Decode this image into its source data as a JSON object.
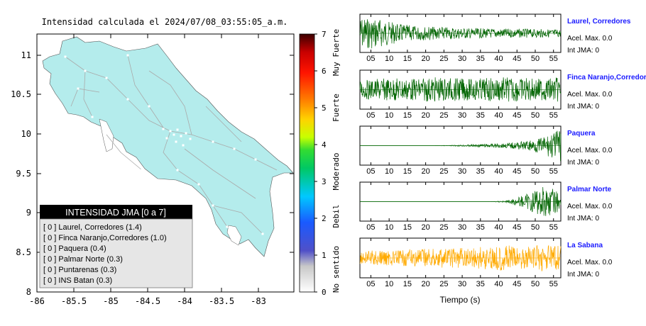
{
  "map": {
    "title": "Intensidad calculada el 2024/07/08_03:55:05_a.m.",
    "x_ticks": [
      "-86",
      "-85.5",
      "-85",
      "-84.5",
      "-84",
      "-83.5",
      "-83"
    ],
    "y_ticks": [
      "11",
      "10.5",
      "10",
      "9.5",
      "9",
      "8.5",
      "8"
    ],
    "land_color": "#b4ecec",
    "legend": {
      "header": "INTENSIDAD JMA [0 a 7]",
      "rows": [
        "[ 0 ] Laurel, Corredores (1.4)",
        "[ 0 ] Finca Naranjo,Corredores (1.0)",
        "[ 0 ] Paquera (0.4)",
        "[ 0 ] Palmar Norte (0.3)",
        "[ 0 ] Puntarenas (0.3)",
        "[ 0 ] INS Batan (0.3)"
      ]
    }
  },
  "colorbar": {
    "ticks": [
      "7",
      "6",
      "5",
      "4",
      "3",
      "2",
      "1",
      "0"
    ],
    "categories": [
      "Muy Fuerte",
      "Fuerte",
      "Moderado",
      "Debil",
      "No sentido"
    ]
  },
  "chart_data": [
    {
      "type": "line",
      "station": "Laurel, Corredores",
      "acel_label": "Acel. Max. 0.0",
      "jma_label": "Int JMA: 0",
      "color": "#006400",
      "envelope": [
        0.9,
        0.85,
        0.55,
        0.42,
        0.38,
        0.34,
        0.3,
        0.27,
        0.26,
        0.25,
        0.24,
        0.22
      ],
      "xlim": [
        2,
        57
      ]
    },
    {
      "type": "line",
      "station": "Finca Naranjo,Corredores",
      "acel_label": "Acel. Max. 0.0",
      "jma_label": "Int JMA: 0",
      "color": "#006400",
      "envelope": [
        0.5,
        0.6,
        0.65,
        0.6,
        0.7,
        0.65,
        0.6,
        0.65,
        0.7,
        0.65,
        0.6,
        0.7
      ],
      "xlim": [
        2,
        57
      ]
    },
    {
      "type": "line",
      "station": "Paquera",
      "acel_label": "Acel. Max. 0.0",
      "jma_label": "Int JMA: 0",
      "color": "#006400",
      "envelope": [
        0.0,
        0.0,
        0.0,
        0.0,
        0.0,
        0.02,
        0.06,
        0.1,
        0.14,
        0.24,
        0.45,
        0.95
      ],
      "xlim": [
        2,
        57
      ]
    },
    {
      "type": "line",
      "station": "Palmar Norte",
      "acel_label": "Acel. Max. 0.0",
      "jma_label": "Int JMA: 0",
      "color": "#006400",
      "envelope": [
        0.0,
        0.0,
        0.0,
        0.0,
        0.0,
        0.0,
        0.0,
        0.0,
        0.05,
        0.35,
        0.9,
        0.6
      ],
      "xlim": [
        2,
        57
      ]
    },
    {
      "type": "line",
      "station": "La Sabana",
      "acel_label": "Acel. Max. 0.0",
      "jma_label": "Int JMA: 0",
      "color": "#ffaa00",
      "envelope": [
        0.35,
        0.45,
        0.4,
        0.5,
        0.5,
        0.55,
        0.6,
        0.65,
        0.7,
        0.6,
        0.75,
        0.7
      ],
      "xlim": [
        2,
        57
      ]
    }
  ],
  "wave_axis": {
    "tick_labels": [
      "05",
      "10",
      "15",
      "20",
      "25",
      "30",
      "35",
      "40",
      "45",
      "50",
      "55"
    ],
    "xlabel": "Tiempo (s)"
  }
}
